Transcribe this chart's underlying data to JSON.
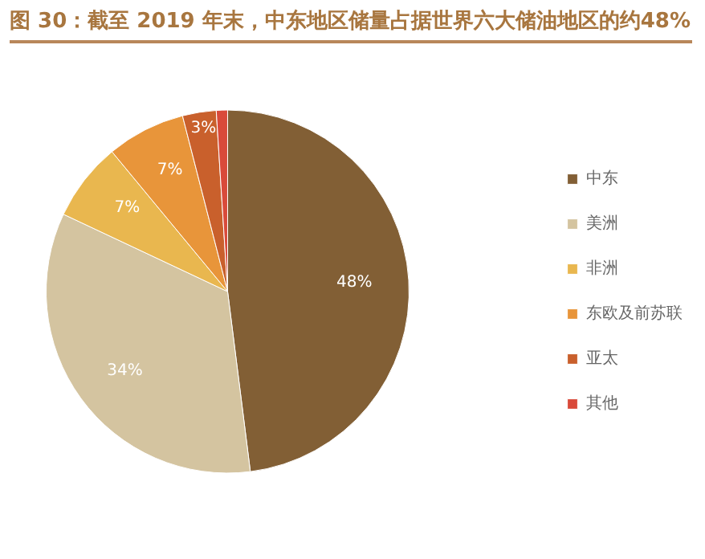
{
  "chart_data": {
    "type": "pie",
    "title": "图 30：截至 2019 年末，中东地区储量占据世界六大储油地区的约48%",
    "categories": [
      "中东",
      "美洲",
      "非洲",
      "东欧及前苏联",
      "亚太",
      "其他"
    ],
    "values": [
      48,
      34,
      7,
      7,
      3,
      1
    ],
    "value_labels": [
      "48%",
      "34%",
      "7%",
      "7%",
      "3%",
      null
    ],
    "colors": [
      "#825f35",
      "#d4c4a0",
      "#e9b74f",
      "#e8953a",
      "#c9602c",
      "#d94a3a"
    ],
    "legend": "right"
  }
}
